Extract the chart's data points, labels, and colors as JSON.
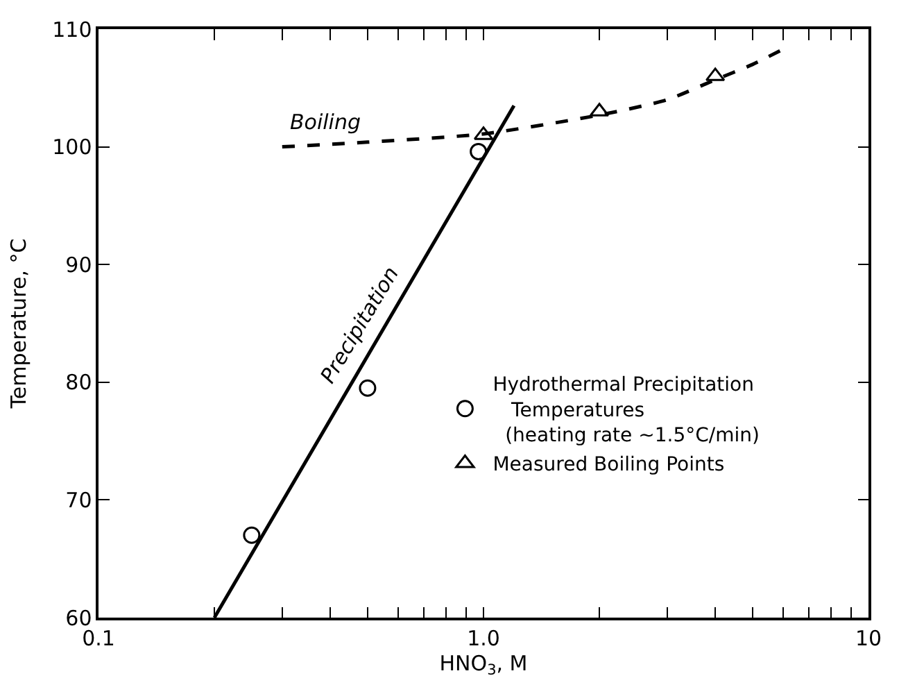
{
  "chart_data": {
    "type": "scatter",
    "xlabel": "HNO$_{3}$, M",
    "ylabel": "Temperature, °C",
    "log": "x",
    "legend": "right",
    "xlim": [
      0.1,
      10
    ],
    "ylim": [
      60,
      110
    ],
    "xticks": [
      0.1,
      {
        "value": 0.2,
        "label": null
      },
      {
        "value": 0.3,
        "label": null
      },
      {
        "value": 0.4,
        "label": null
      },
      {
        "value": 0.5,
        "label": null
      },
      {
        "value": 0.6,
        "label": null
      },
      {
        "value": 0.7,
        "label": null
      },
      {
        "value": 0.8,
        "label": null
      },
      {
        "value": 0.9,
        "label": null
      },
      {
        "value": 1,
        "label": "1.0"
      },
      {
        "value": 2,
        "label": null
      },
      {
        "value": 3,
        "label": null
      },
      {
        "value": 4,
        "label": null
      },
      {
        "value": 5,
        "label": null
      },
      {
        "value": 6,
        "label": null
      },
      {
        "value": 7,
        "label": null
      },
      {
        "value": 8,
        "label": null
      },
      {
        "value": 9,
        "label": null
      },
      10
    ],
    "yticks": [
      60,
      70,
      80,
      90,
      100,
      110
    ],
    "series": [
      {
        "type": "line",
        "name": "Precipitation",
        "color": "#000000",
        "line_style": "solid",
        "marker": "none",
        "x": [
          0.2,
          1.2
        ],
        "values": [
          60,
          103.5
        ]
      },
      {
        "type": "line",
        "name": "Boiling",
        "color": "#000000",
        "line_style": "dashed",
        "marker": "none",
        "x": [
          0.3,
          0.5,
          1,
          2,
          3,
          4,
          5,
          6
        ],
        "values": [
          100,
          100.4,
          101.1,
          102.7,
          104,
          105.7,
          107,
          108.3
        ]
      },
      {
        "name": "Hydrothermal Precipitation\n   Temperatures\n  (heating rate ~1.5°C/min)",
        "color": "#000000",
        "marker": "circle",
        "x": [
          0.25,
          0.5,
          0.97
        ],
        "values": [
          67,
          79.5,
          99.6
        ]
      },
      {
        "name": "Measured Boiling Points",
        "color": "#000000",
        "marker": "triangle",
        "x": [
          1,
          2,
          4
        ],
        "values": [
          101,
          103,
          106
        ]
      }
    ]
  }
}
